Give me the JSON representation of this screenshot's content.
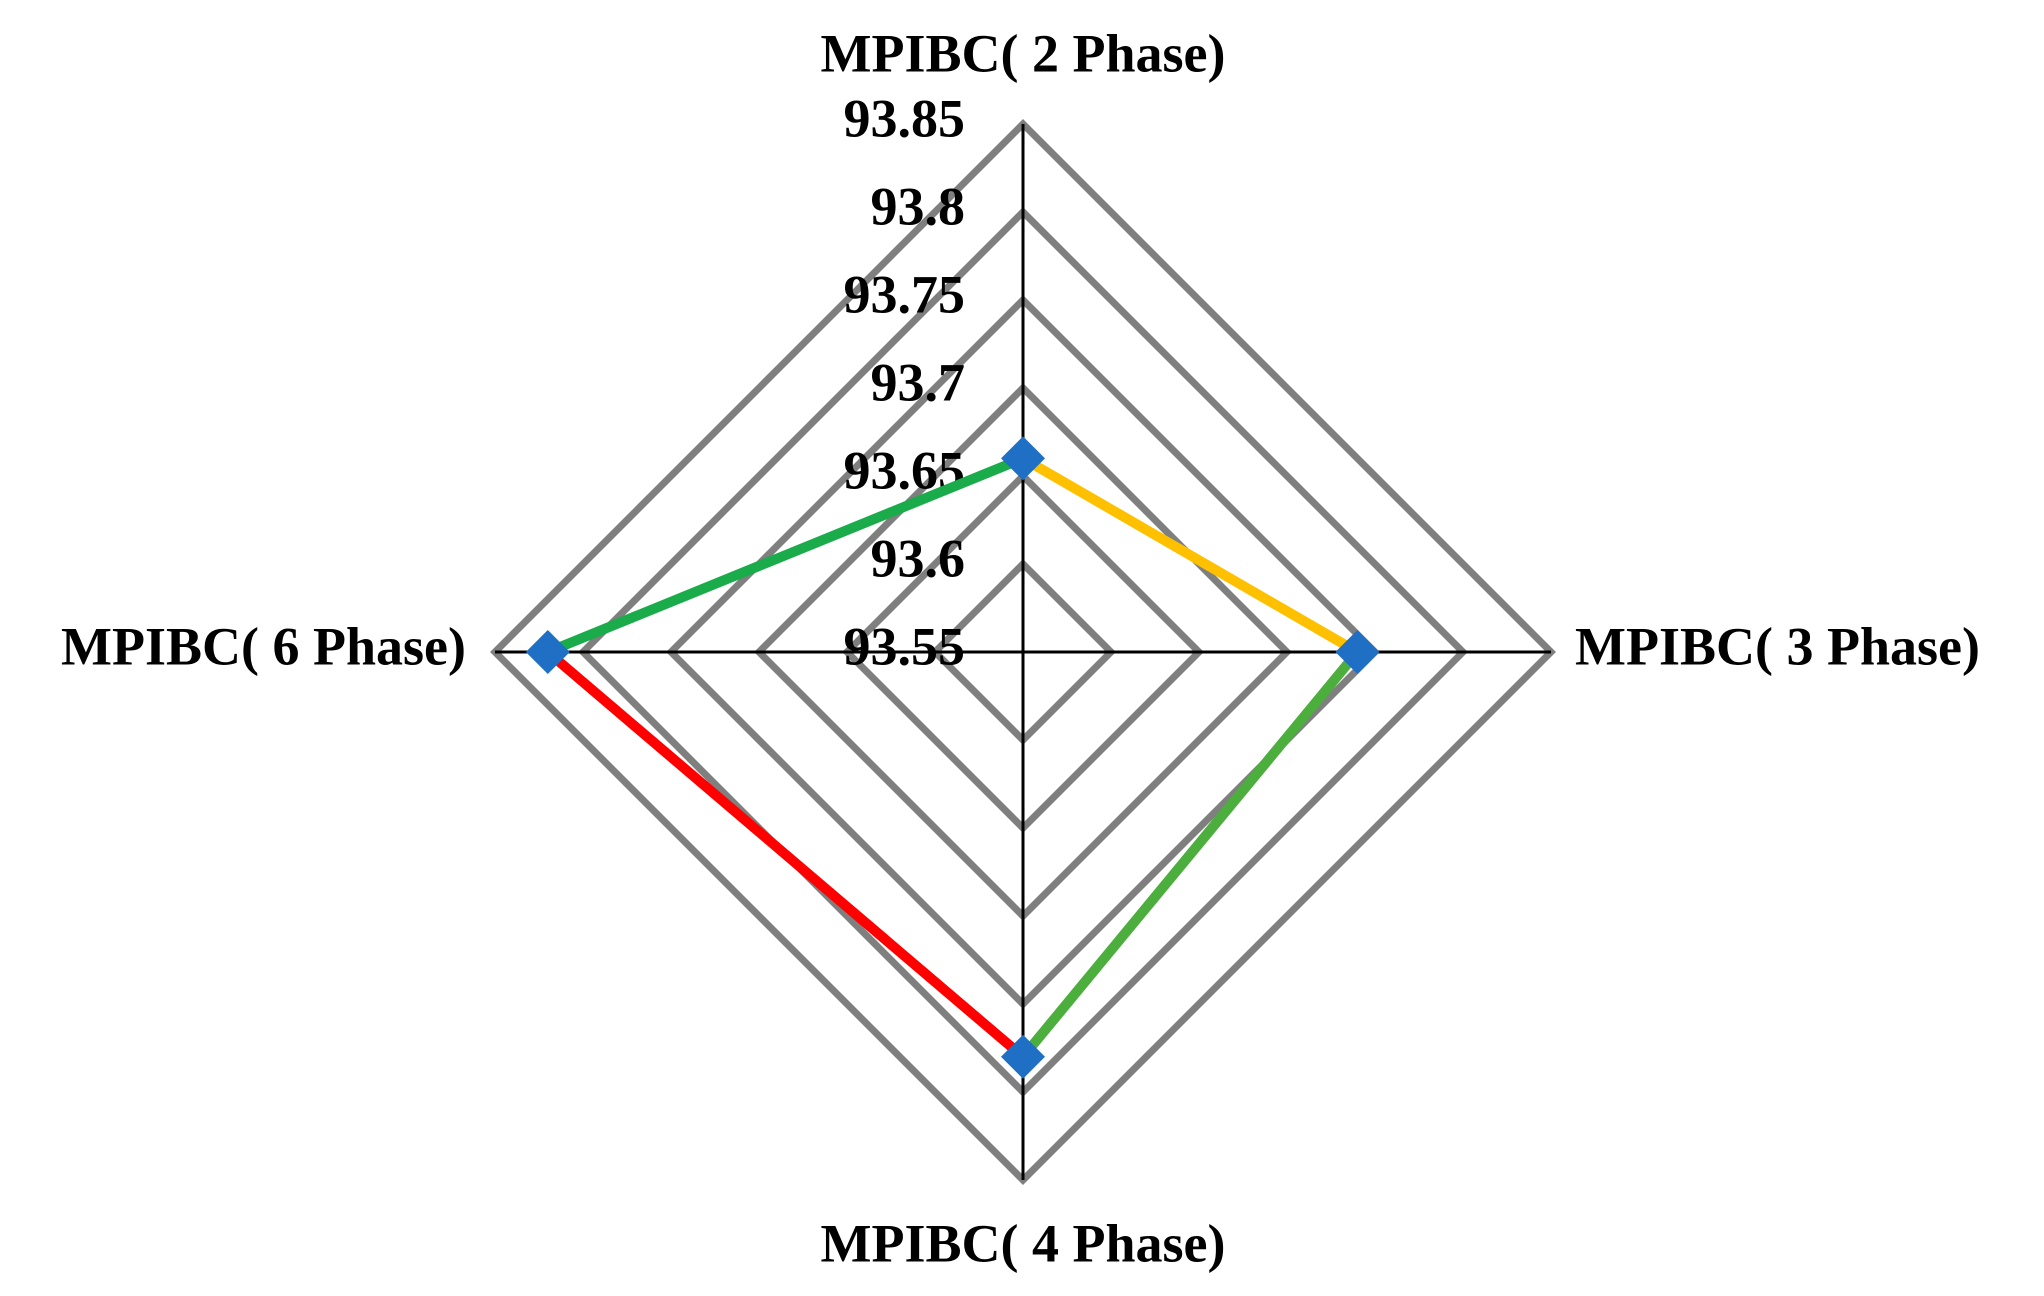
{
  "chart_data": {
    "type": "radar",
    "categories": [
      "MPIBC( 2 Phase)",
      "MPIBC( 3 Phase)",
      "MPIBC( 4 Phase)",
      "MPIBC( 6 Phase)"
    ],
    "rlim": [
      93.55,
      93.85
    ],
    "rticks": [
      93.55,
      93.6,
      93.65,
      93.7,
      93.75,
      93.8,
      93.85
    ],
    "grid_color": "#7f7f7f",
    "axis_color": "#000000",
    "series": [
      {
        "values": [
          93.66,
          93.74,
          93.78,
          93.82
        ],
        "color": "#1f6fc5",
        "segment_colors": [
          "#ffc000",
          "#4cae3c",
          "#ff0000",
          "#1aab4b"
        ]
      }
    ]
  }
}
